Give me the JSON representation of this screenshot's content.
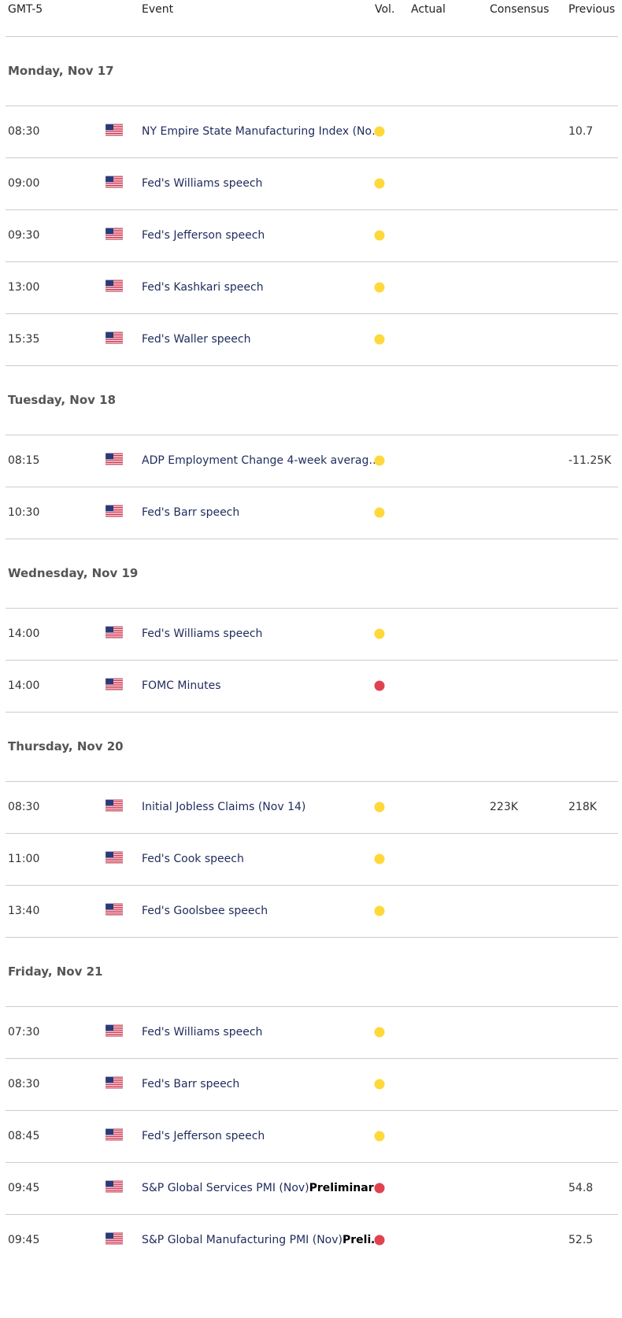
{
  "header": {
    "time": "GMT-5",
    "event": "Event",
    "vol": "Vol.",
    "actual": "Actual",
    "consensus": "Consensus",
    "previous": "Previous"
  },
  "days": [
    {
      "label": "Monday, Nov 17",
      "events": [
        {
          "time": "08:30",
          "event": "NY Empire State Manufacturing Index (No…",
          "vol_color": "#ffd83a",
          "previous": "10.7"
        },
        {
          "time": "09:00",
          "event": "Fed's Williams speech",
          "vol_color": "#ffd83a"
        },
        {
          "time": "09:30",
          "event": "Fed's Jefferson speech",
          "vol_color": "#ffd83a"
        },
        {
          "time": "13:00",
          "event": "Fed's Kashkari speech",
          "vol_color": "#ffd83a"
        },
        {
          "time": "15:35",
          "event": "Fed's Waller speech",
          "vol_color": "#ffd83a"
        }
      ]
    },
    {
      "label": "Tuesday, Nov 18",
      "events": [
        {
          "time": "08:15",
          "event": "ADP Employment Change 4-week averag…",
          "vol_color": "#ffd83a",
          "previous": "-11.25K"
        },
        {
          "time": "10:30",
          "event": "Fed's Barr speech",
          "vol_color": "#ffd83a"
        }
      ]
    },
    {
      "label": "Wednesday, Nov 19",
      "events": [
        {
          "time": "14:00",
          "event": "Fed's Williams speech",
          "vol_color": "#ffd83a"
        },
        {
          "time": "14:00",
          "event": "FOMC Minutes",
          "vol_color": "#e0424f"
        }
      ]
    },
    {
      "label": "Thursday, Nov 20",
      "events": [
        {
          "time": "08:30",
          "event": "Initial Jobless Claims (Nov 14)",
          "vol_color": "#ffd83a",
          "consensus": "223K",
          "previous": "218K"
        },
        {
          "time": "11:00",
          "event": "Fed's Cook speech",
          "vol_color": "#ffd83a"
        },
        {
          "time": "13:40",
          "event": "Fed's Goolsbee speech",
          "vol_color": "#ffd83a"
        }
      ]
    },
    {
      "label": "Friday, Nov 21",
      "events": [
        {
          "time": "07:30",
          "event": "Fed's Williams speech",
          "vol_color": "#ffd83a"
        },
        {
          "time": "08:30",
          "event": "Fed's Barr speech",
          "vol_color": "#ffd83a"
        },
        {
          "time": "08:45",
          "event": "Fed's Jefferson speech",
          "vol_color": "#ffd83a"
        },
        {
          "time": "09:45",
          "event": "S&P Global Services PMI (Nov)",
          "event_bold": "Preliminar",
          "vol_color": "#e0424f",
          "previous": "54.8"
        },
        {
          "time": "09:45",
          "event": "S&P Global Manufacturing PMI (Nov)",
          "event_bold": "Preli…",
          "vol_color": "#e0424f",
          "previous": "52.5"
        }
      ]
    }
  ]
}
